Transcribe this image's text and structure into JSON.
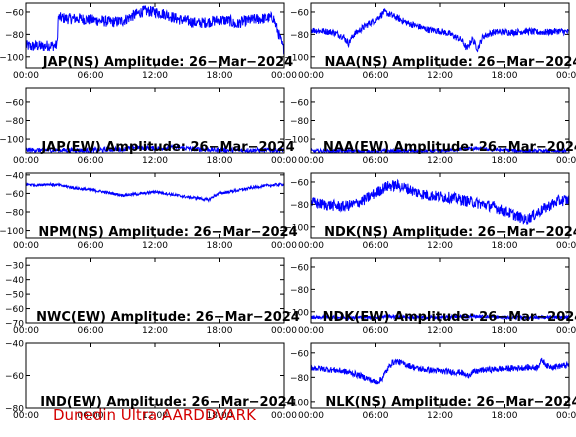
{
  "footer": "Dunedin Ultra AARDDVARK",
  "colors": {
    "signal": "#0000ff",
    "axis": "#000000",
    "footer": "#d40000"
  },
  "chart_data": [
    {
      "type": "line",
      "title": "JAP(NS) Amplitude: 26-Mar-2024",
      "x_ticks": [
        "00:00",
        "06:00",
        "12:00",
        "18:00",
        "00:00"
      ],
      "y_ticks": [
        -100,
        -80,
        -60
      ],
      "ylim": [
        -110,
        -52
      ],
      "x_hours": [
        0,
        0.5,
        1,
        1.5,
        2,
        2.9,
        3,
        4,
        5,
        6,
        7,
        8,
        9,
        10,
        11,
        12,
        13,
        14,
        15,
        16,
        17,
        18,
        19,
        19.5,
        20,
        21,
        22,
        23,
        23.9,
        24
      ],
      "y": [
        -90,
        -91,
        -90,
        -91,
        -90,
        -90,
        -65,
        -66,
        -66,
        -67,
        -68,
        -69,
        -68,
        -63,
        -59,
        -60,
        -62,
        -66,
        -68,
        -70,
        -69,
        -67,
        -68,
        -72,
        -69,
        -67,
        -66,
        -65,
        -92,
        -93
      ],
      "noise": 5
    },
    {
      "type": "line",
      "title": "NAA(NS) Amplitude: 26-Mar-2024",
      "x_ticks": [
        "00:00",
        "06:00",
        "12:00",
        "18:00",
        "00:00"
      ],
      "y_ticks": [
        -100,
        -80,
        -60
      ],
      "ylim": [
        -110,
        -52
      ],
      "x_hours": [
        0,
        1,
        2,
        3,
        3.5,
        4,
        5,
        6,
        6.8,
        7.5,
        9,
        10,
        11,
        12,
        13,
        14,
        14.5,
        15,
        15.5,
        16,
        17,
        18,
        19,
        20,
        21,
        22,
        23,
        24
      ],
      "y": [
        -76,
        -77,
        -78,
        -82,
        -88,
        -80,
        -73,
        -67,
        -60,
        -63,
        -70,
        -73,
        -76,
        -77,
        -80,
        -85,
        -93,
        -84,
        -93,
        -82,
        -78,
        -78,
        -78,
        -77,
        -78,
        -78,
        -77,
        -78
      ],
      "noise": 3
    },
    {
      "type": "line",
      "title": "JAP(EW) Amplitude: 26-Mar-2024",
      "x_ticks": [
        "00:00",
        "06:00",
        "12:00",
        "18:00",
        "00:00"
      ],
      "y_ticks": [
        -100,
        -80,
        -60
      ],
      "ylim": [
        -115,
        -45
      ],
      "x_hours": [
        0,
        3,
        6,
        9,
        10,
        12,
        14,
        16,
        18,
        21,
        24
      ],
      "y": [
        -112,
        -112,
        -112,
        -111,
        -109,
        -110,
        -109,
        -111,
        -112,
        -112,
        -112
      ],
      "noise": 2.5
    },
    {
      "type": "line",
      "title": "NAA(EW) Amplitude: 26-Mar-2024",
      "x_ticks": [
        "00:00",
        "06:00",
        "12:00",
        "18:00",
        "00:00"
      ],
      "y_ticks": [
        -100,
        -80,
        -60
      ],
      "ylim": [
        -115,
        -45
      ],
      "x_hours": [
        0,
        3,
        6,
        9,
        12,
        13,
        14,
        15,
        16,
        18,
        20,
        22,
        24
      ],
      "y": [
        -113,
        -113,
        -113,
        -113,
        -113,
        -112,
        -111,
        -110,
        -111,
        -112,
        -113,
        -113,
        -113
      ],
      "noise": 2
    },
    {
      "type": "line",
      "title": "NPM(NS) Amplitude: 26-Mar-2024",
      "x_ticks": [
        "00:00",
        "06:00",
        "12:00",
        "18:00",
        "00:00"
      ],
      "y_ticks": [
        -100,
        -80,
        -60,
        -40
      ],
      "ylim": [
        -108,
        -38
      ],
      "x_hours": [
        0,
        1,
        2,
        3,
        4,
        5,
        6,
        7,
        8,
        9,
        10,
        11,
        12,
        13,
        14,
        15,
        16,
        17,
        17.5,
        18,
        19,
        20,
        21,
        22,
        23,
        24
      ],
      "y": [
        -50,
        -51,
        -50,
        -51,
        -53,
        -55,
        -56,
        -58,
        -60,
        -62,
        -61,
        -60,
        -58,
        -60,
        -62,
        -64,
        -65,
        -67,
        -63,
        -60,
        -58,
        -56,
        -54,
        -52,
        -51,
        -50
      ],
      "noise": 1.5
    },
    {
      "type": "line",
      "title": "NDK(NS) Amplitude: 26-Mar-2024",
      "x_ticks": [
        "00:00",
        "06:00",
        "12:00",
        "18:00",
        "00:00"
      ],
      "y_ticks": [
        -100,
        -80,
        -60
      ],
      "ylim": [
        -110,
        -52
      ],
      "x_hours": [
        0,
        1,
        2,
        3,
        4,
        5,
        6,
        7,
        8,
        9,
        10,
        11,
        12,
        13,
        14,
        15,
        16,
        17,
        18,
        19,
        20,
        21,
        22,
        23,
        24
      ],
      "y": [
        -78,
        -80,
        -81,
        -82,
        -80,
        -76,
        -70,
        -64,
        -63,
        -66,
        -70,
        -72,
        -73,
        -74,
        -76,
        -78,
        -80,
        -82,
        -86,
        -90,
        -94,
        -88,
        -82,
        -77,
        -76
      ],
      "noise": 5
    },
    {
      "type": "line",
      "title": "NWC(EW) Amplitude: 26-Mar-2024",
      "x_ticks": [
        "00:00",
        "06:00",
        "12:00",
        "18:00",
        "00:00"
      ],
      "y_ticks": [
        -70,
        -60,
        -50,
        -40,
        -30
      ],
      "ylim": [
        -70,
        -25
      ],
      "x_hours": [],
      "y": [],
      "noise": 0
    },
    {
      "type": "line",
      "title": "NDK(EW) Amplitude: 26-Mar-2024",
      "x_ticks": [
        "00:00",
        "06:00",
        "12:00",
        "18:00",
        "00:00"
      ],
      "y_ticks": [
        -100,
        -80,
        -60
      ],
      "ylim": [
        -110,
        -52
      ],
      "x_hours": [
        0,
        3,
        6,
        7,
        9,
        12,
        15,
        18,
        20,
        22,
        24
      ],
      "y": [
        -105,
        -105,
        -105,
        -104,
        -105,
        -105,
        -104,
        -105,
        -105,
        -105,
        -105
      ],
      "noise": 1.5
    },
    {
      "type": "line",
      "title": "IND(EW) Amplitude: 26-Mar-2024",
      "x_ticks": [
        "00:00",
        "06:00",
        "12:00",
        "18:00",
        "00:00"
      ],
      "y_ticks": [
        -80,
        -60,
        -40
      ],
      "ylim": [
        -80,
        -40
      ],
      "x_hours": [],
      "y": [],
      "noise": 0
    },
    {
      "type": "line",
      "title": "NLK(NS) Amplitude: 26-Mar-2024",
      "x_ticks": [
        "00:00",
        "06:00",
        "12:00",
        "18:00",
        "00:00"
      ],
      "y_ticks": [
        -100,
        -80,
        -60
      ],
      "ylim": [
        -105,
        -52
      ],
      "x_hours": [
        0,
        1,
        2,
        3,
        4,
        5,
        6,
        6.5,
        7,
        7.5,
        8,
        9,
        10,
        12,
        14,
        14.5,
        15,
        16,
        18,
        20,
        21,
        21.5,
        22,
        23,
        24
      ],
      "y": [
        -72,
        -73,
        -74,
        -75,
        -77,
        -80,
        -84,
        -82,
        -75,
        -68,
        -67,
        -70,
        -73,
        -75,
        -76,
        -79,
        -76,
        -74,
        -73,
        -72,
        -72,
        -66,
        -71,
        -71,
        -70
      ],
      "noise": 2.5
    }
  ]
}
